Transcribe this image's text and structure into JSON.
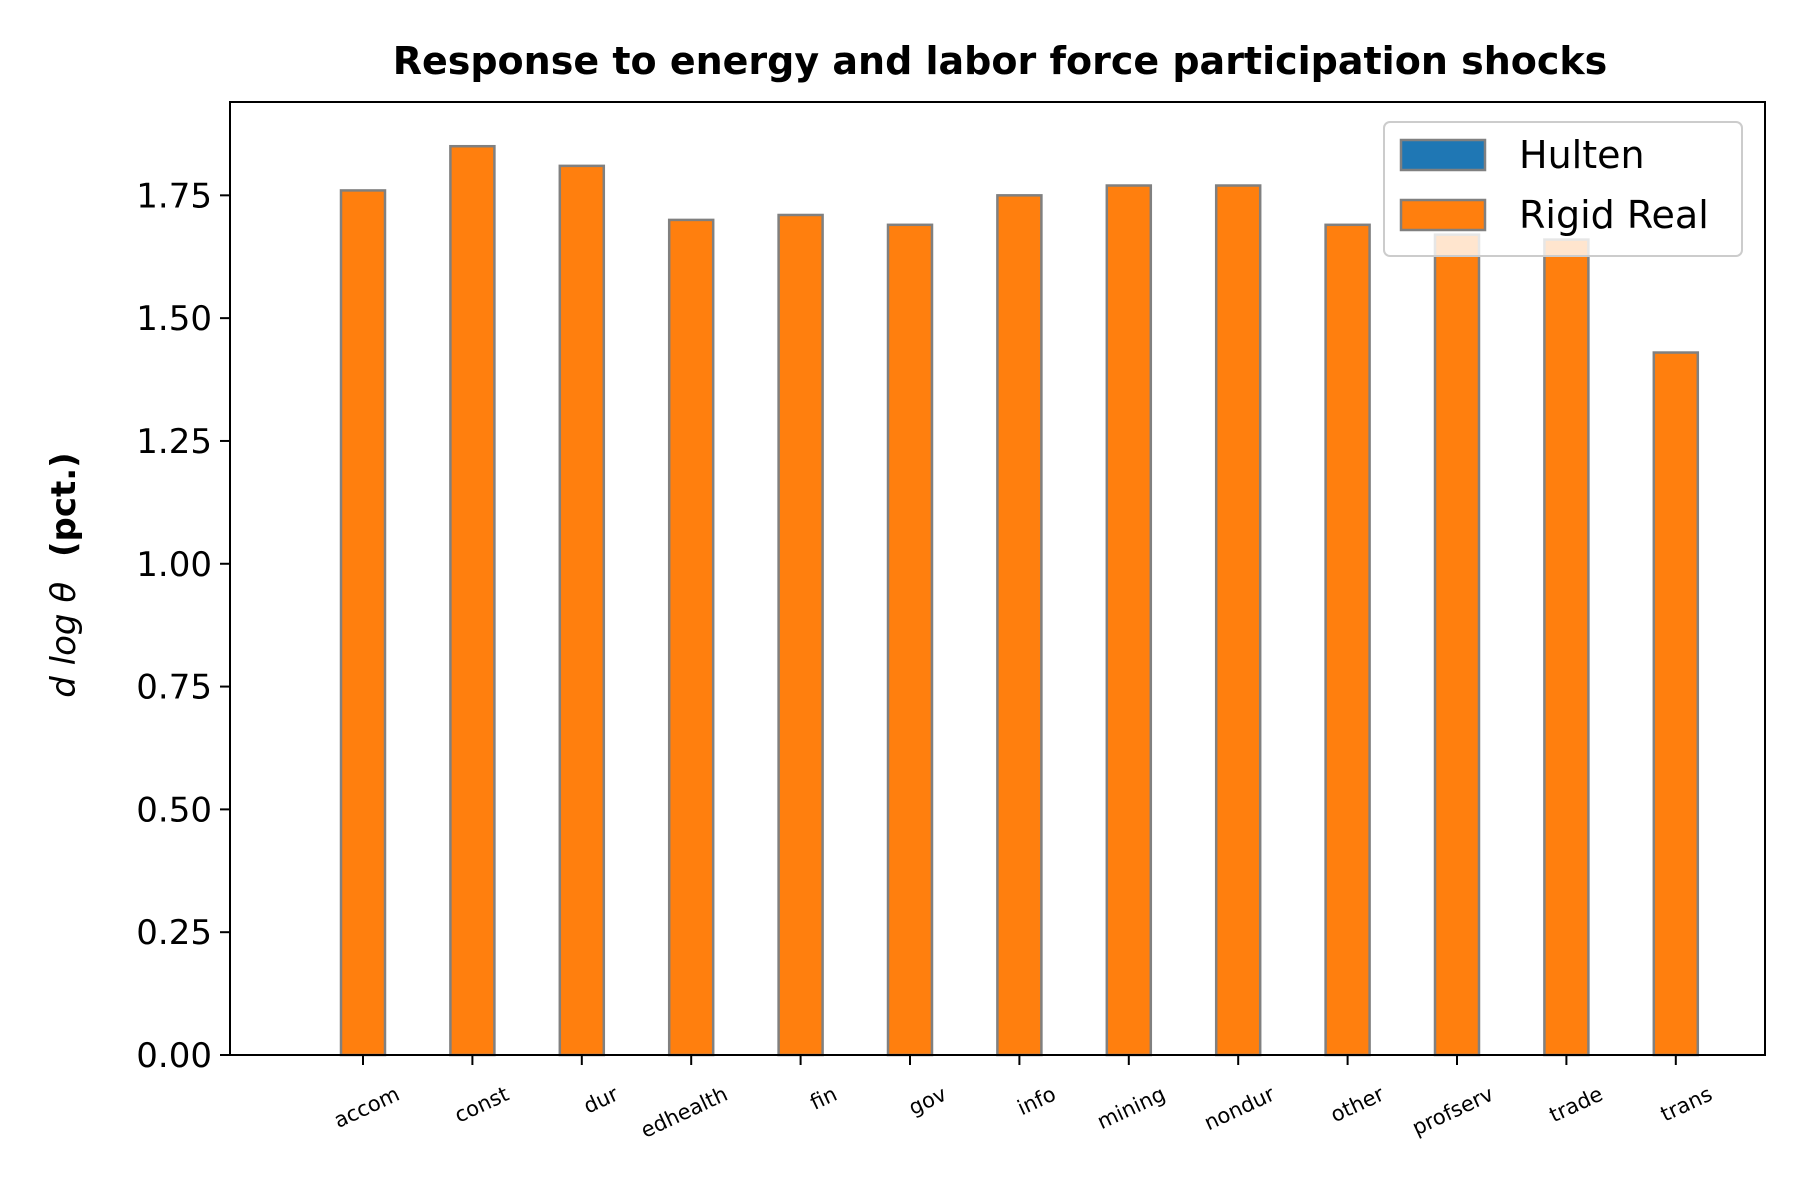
{
  "chart_data": {
    "type": "bar",
    "title": "Response to energy and labor force participation shocks",
    "ylabel": "(pct.)",
    "ylabel_math": "d log θ",
    "xlabel": "",
    "ylim": [
      0,
      1.94
    ],
    "yticks": [
      "0.00",
      "0.25",
      "0.50",
      "0.75",
      "1.00",
      "1.25",
      "1.50",
      "1.75"
    ],
    "yticks_values": [
      0,
      0.25,
      0.5,
      0.75,
      1.0,
      1.25,
      1.5,
      1.75
    ],
    "categories": [
      "accom",
      "const",
      "dur",
      "edhealth",
      "fin",
      "gov",
      "info",
      "mining",
      "nondur",
      "other",
      "profserv",
      "trade",
      "trans"
    ],
    "series": [
      {
        "name": "Hulten",
        "color": "#1f77b4",
        "values": [
          0,
          0,
          0,
          0,
          0,
          0,
          0,
          0,
          0,
          0,
          0,
          0,
          0
        ]
      },
      {
        "name": "Rigid Real",
        "color": "#ff7f0e",
        "values": [
          1.76,
          1.85,
          1.81,
          1.7,
          1.71,
          1.69,
          1.75,
          1.77,
          1.77,
          1.69,
          1.67,
          1.66,
          1.43
        ]
      }
    ],
    "legend": {
      "position": "top-right"
    },
    "grid": false,
    "bar_edge_color": "#808080"
  }
}
